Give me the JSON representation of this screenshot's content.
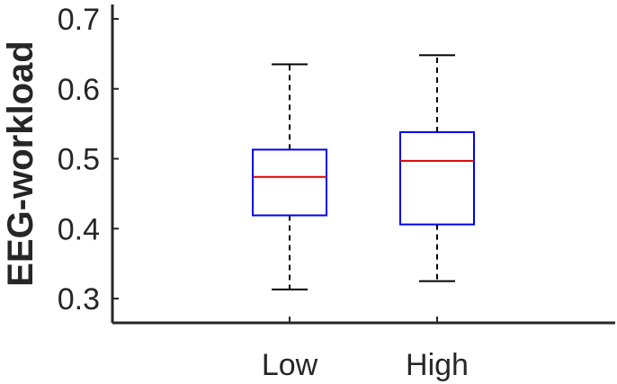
{
  "chart_data": {
    "type": "boxplot",
    "title": "",
    "xlabel": "",
    "ylabel": "EEG-workload",
    "ylim": [
      0.26,
      0.72
    ],
    "yticks": [
      0.3,
      0.4,
      0.5,
      0.6,
      0.7
    ],
    "ytick_labels": [
      "0.3",
      "0.4",
      "0.5",
      "0.6",
      "0.7"
    ],
    "grid": false,
    "legend": "none",
    "categories": [
      "Low",
      "High"
    ],
    "boxes": [
      {
        "category": "Low",
        "whisker_low": 0.313,
        "q1": 0.419,
        "median": 0.474,
        "q3": 0.513,
        "whisker_high": 0.635
      },
      {
        "category": "High",
        "whisker_low": 0.325,
        "q1": 0.406,
        "median": 0.497,
        "q3": 0.538,
        "whisker_high": 0.648
      }
    ],
    "colors": {
      "box": "#0000ee",
      "median": "#dd0000",
      "whisker": "#000000",
      "axis": "#262626"
    }
  }
}
